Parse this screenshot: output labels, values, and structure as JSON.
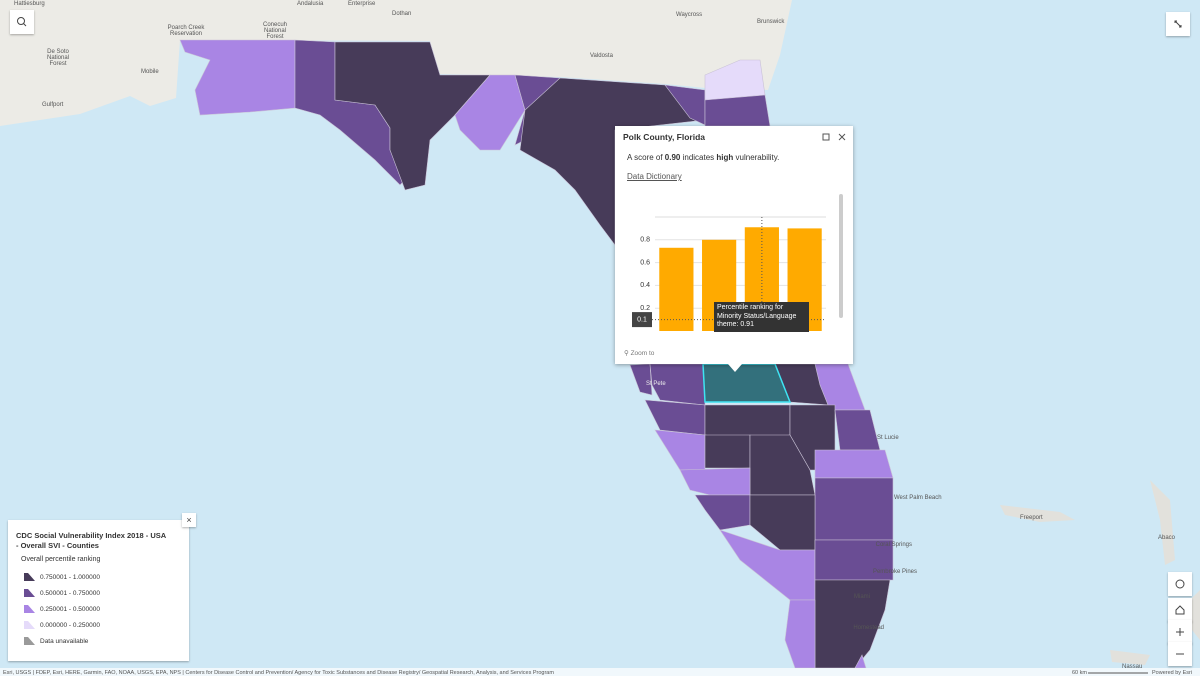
{
  "map": {
    "labels": [
      "Hattiesburg",
      "Andalusia",
      "Enterprise",
      "Dothan",
      "Waycross",
      "Brunswick",
      "Poarch Creek",
      "Reservation",
      "Conecuh",
      "National",
      "Forest",
      "De Soto",
      "National",
      "Forest",
      "Mobile",
      "Gulfport",
      "Valdosta",
      "St Lucie",
      "West Palm Beach",
      "Coral Springs",
      "Pembroke Pines",
      "Miami",
      "Homestead",
      "Freeport",
      "Abaco",
      "Nassau",
      "St Pete"
    ],
    "attribution": "Esri, USGS | FDEP, Esri, HERE, Garmin, FAO, NOAA, USGS, EPA, NPS | Centers for Disease Control and Prevention/ Agency for Toxic Substances and Disease Registry/ Geospatial Research, Analysis, and Services Program",
    "scale": "60 km",
    "powered_by": "Powered by Esri"
  },
  "legend": {
    "title": "CDC Social Vulnerability Index 2018 - USA - Overall SVI - Counties",
    "subtitle": "Overall percentile ranking",
    "items": [
      {
        "label": "0.750001 - 1.000000",
        "color": "#473b59"
      },
      {
        "label": "0.500001 - 0.750000",
        "color": "#6a4d94"
      },
      {
        "label": "0.250001 - 0.500000",
        "color": "#a985e4"
      },
      {
        "label": "0.000000 - 0.250000",
        "color": "#e5dbfa"
      },
      {
        "label": "Data unavailable",
        "color": "#9a9a9a"
      }
    ]
  },
  "popup": {
    "title": "Polk County, Florida",
    "summary": [
      "A score of ",
      "0.90",
      " indicates ",
      "high",
      " vulnerability."
    ],
    "link": "Data Dictionary",
    "zoom": "Zoom to"
  },
  "chart_data": {
    "type": "bar",
    "categories": [
      null,
      null,
      null,
      null
    ],
    "values": [
      0.73,
      0.8,
      0.91,
      0.9
    ],
    "color": "#ffaa00",
    "ylim": [
      0,
      1
    ],
    "yticks": [
      0.2,
      0.4,
      0.6,
      0.8
    ],
    "grid": true,
    "crosshair": 0.1,
    "tooltip": "Percentile ranking for Minority Status/Language theme: 0.91"
  }
}
